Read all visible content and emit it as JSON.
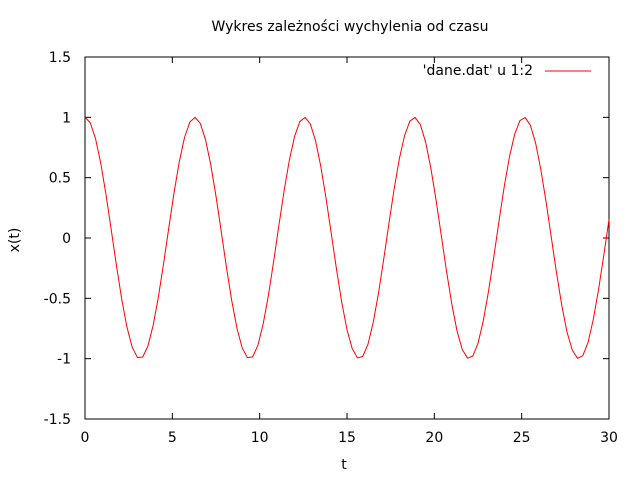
{
  "chart_data": {
    "type": "line",
    "title": "Wykres zależności wychylenia od czasu",
    "xlabel": "t",
    "ylabel": "x(t)",
    "xlim": [
      0,
      30
    ],
    "ylim": [
      -1.5,
      1.5
    ],
    "x_ticks": [
      0,
      5,
      10,
      15,
      20,
      25,
      30
    ],
    "y_ticks": [
      -1.5,
      -1,
      -0.5,
      0,
      0.5,
      1,
      1.5
    ],
    "x_tick_labels": [
      "0",
      "5",
      "10",
      "15",
      "20",
      "25",
      "30"
    ],
    "y_tick_labels": [
      "-1.5",
      "-1",
      "-0.5",
      "0",
      "0.5",
      "1",
      "1.5"
    ],
    "grid": false,
    "legend_position": "top-right",
    "series": [
      {
        "name": "'dane.dat' u 1:2",
        "color": "#ff0000",
        "x": [
          0,
          0.3,
          0.6,
          0.9,
          1.2,
          1.5,
          1.8,
          2.1,
          2.4,
          2.7,
          3.0,
          3.3,
          3.6,
          3.9,
          4.2,
          4.5,
          4.8,
          5.1,
          5.4,
          5.7,
          6.0,
          6.3,
          6.6,
          6.9,
          7.2,
          7.5,
          7.8,
          8.1,
          8.4,
          8.7,
          9.0,
          9.3,
          9.6,
          9.9,
          10.2,
          10.5,
          10.8,
          11.1,
          11.4,
          11.7,
          12.0,
          12.3,
          12.6,
          12.9,
          13.2,
          13.5,
          13.8,
          14.1,
          14.4,
          14.7,
          15.0,
          15.3,
          15.6,
          15.9,
          16.2,
          16.5,
          16.8,
          17.1,
          17.4,
          17.7,
          18.0,
          18.3,
          18.6,
          18.9,
          19.2,
          19.5,
          19.8,
          20.1,
          20.4,
          20.7,
          21.0,
          21.3,
          21.6,
          21.9,
          22.2,
          22.5,
          22.8,
          23.1,
          23.4,
          23.7,
          24.0,
          24.3,
          24.6,
          24.9,
          25.2,
          25.5,
          25.8,
          26.1,
          26.4,
          26.7,
          27.0,
          27.3,
          27.6,
          27.9,
          28.2,
          28.5,
          28.8,
          29.1,
          29.4,
          29.7,
          30.0
        ],
        "y": [
          1.0,
          0.955,
          0.825,
          0.621,
          0.362,
          0.07,
          -0.227,
          -0.505,
          -0.737,
          -0.904,
          -0.99,
          -0.987,
          -0.896,
          -0.725,
          -0.49,
          -0.211,
          0.087,
          0.377,
          0.634,
          0.834,
          0.96,
          1.0,
          0.95,
          0.815,
          0.607,
          0.346,
          0.053,
          -0.244,
          -0.519,
          -0.748,
          -0.911,
          -0.992,
          -0.985,
          -0.889,
          -0.713,
          -0.475,
          -0.194,
          0.104,
          0.392,
          0.646,
          0.843,
          0.965,
          1.0,
          0.945,
          0.806,
          0.593,
          0.33,
          0.036,
          -0.26,
          -0.534,
          -0.76,
          -0.917,
          -0.994,
          -0.982,
          -0.881,
          -0.7,
          -0.46,
          -0.178,
          0.121,
          0.408,
          0.659,
          0.851,
          0.969,
          0.999,
          0.939,
          0.796,
          0.579,
          0.314,
          0.019,
          -0.277,
          -0.548,
          -0.771,
          -0.924,
          -0.996,
          -0.979,
          -0.873,
          -0.688,
          -0.444,
          -0.161,
          0.138,
          0.424,
          0.672,
          0.86,
          0.973,
          0.998,
          0.934,
          0.786,
          0.565,
          0.298,
          0.002,
          -0.293,
          -0.562,
          -0.781,
          -0.93,
          -0.997,
          -0.975,
          -0.865,
          -0.675,
          -0.429,
          -0.144,
          0.154
        ]
      }
    ]
  }
}
